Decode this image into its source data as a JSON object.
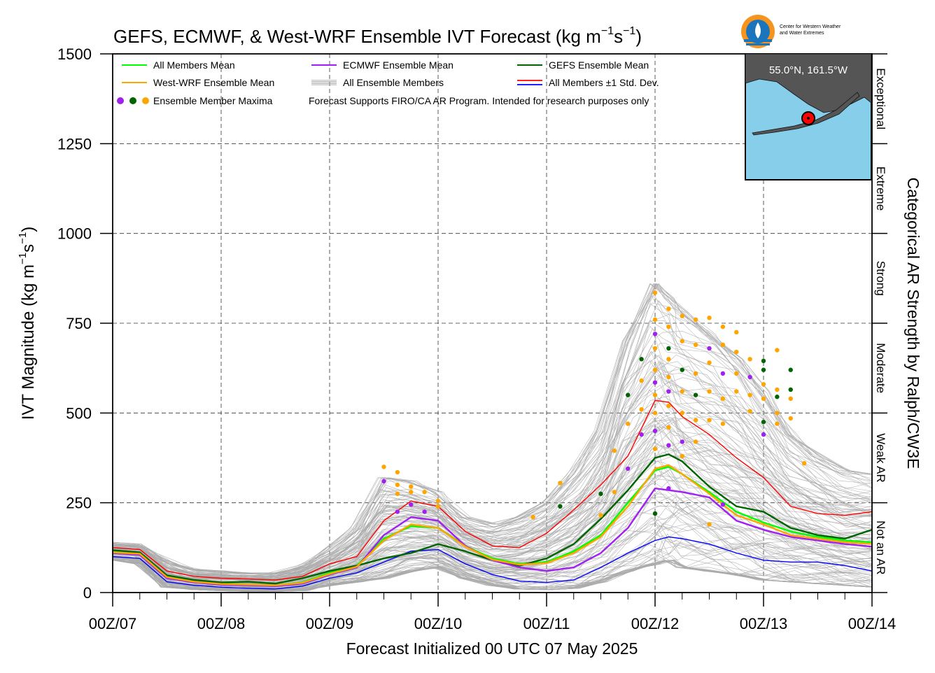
{
  "chart_data": {
    "type": "line",
    "title": "GEFS, ECMWF, & West-WRF Ensemble IVT Forecast (kg m⁻¹s⁻¹)",
    "title_text": "GEFS, ECMWF, & West-WRF Ensemble IVT Forecast (kg m",
    "title_exp1": "−1",
    "title_s": "s",
    "title_exp2": "−1",
    "title_end": ")",
    "ylabel_text": "IVT Magnitude (kg m",
    "ylabel_exp1": "−1",
    "ylabel_s": "s",
    "ylabel_exp2": "−1",
    "ylabel_end": ")",
    "xlabel": "Forecast Initialized 00 UTC 07 May 2025",
    "right_label": "Categorical AR Strength by Ralph/CW3E",
    "logo_text_1": "Center for Western Weather",
    "logo_text_2": "and Water Extremes",
    "inset_location": "55.0°N, 161.5°W",
    "ylim": [
      0,
      1500
    ],
    "yticks": [
      0,
      250,
      500,
      750,
      1000,
      1250,
      1500
    ],
    "xlim": [
      0,
      168
    ],
    "xticks": [
      {
        "hour": 0,
        "label": "00Z/07"
      },
      {
        "hour": 24,
        "label": "00Z/08"
      },
      {
        "hour": 48,
        "label": "00Z/09"
      },
      {
        "hour": 72,
        "label": "00Z/10"
      },
      {
        "hour": 96,
        "label": "00Z/11"
      },
      {
        "hour": 120,
        "label": "00Z/12"
      },
      {
        "hour": 144,
        "label": "00Z/13"
      },
      {
        "hour": 168,
        "label": "00Z/14"
      }
    ],
    "categories": [
      {
        "label": "Not an AR",
        "from": 0,
        "to": 250
      },
      {
        "label": "Weak AR",
        "from": 250,
        "to": 500
      },
      {
        "label": "Moderate",
        "from": 500,
        "to": 750
      },
      {
        "label": "Strong",
        "from": 750,
        "to": 1000
      },
      {
        "label": "Extreme",
        "from": 1000,
        "to": 1250
      },
      {
        "label": "Exceptional",
        "from": 1250,
        "to": 1500
      }
    ],
    "grid": true,
    "legend_position": "top-left",
    "legend": [
      {
        "label": "All Members Mean",
        "color": "#00ff00",
        "kind": "line"
      },
      {
        "label": "ECMWF Ensemble Mean",
        "color": "#a020f0",
        "kind": "line"
      },
      {
        "label": "GEFS Ensemble Mean",
        "color": "#006400",
        "kind": "line"
      },
      {
        "label": "West-WRF Ensemble Mean",
        "color": "#ffa500",
        "kind": "line"
      },
      {
        "label": "All Ensemble Members",
        "color": "#a9a9a9",
        "kind": "members"
      },
      {
        "label": "All Members ±1 Std. Dev.",
        "color": "#ff0000",
        "color2": "#0000ff",
        "kind": "pair"
      },
      {
        "label": "Ensemble Member Maxima",
        "kind": "dots",
        "colors": [
          "#a020f0",
          "#006400",
          "#ffa500"
        ]
      }
    ],
    "note": "Forecast Supports FIRO/CA AR Program. Intended for research purposes only",
    "series": [
      {
        "name": "All Members Mean",
        "color": "#00ff00",
        "x": [
          0,
          6,
          12,
          18,
          24,
          30,
          36,
          42,
          48,
          54,
          60,
          66,
          72,
          78,
          84,
          90,
          96,
          102,
          108,
          114,
          120,
          123,
          126,
          132,
          138,
          144,
          150,
          156,
          162,
          168
        ],
        "y": [
          115,
          110,
          45,
          30,
          25,
          22,
          20,
          28,
          55,
          75,
          150,
          185,
          180,
          130,
          95,
          80,
          85,
          115,
          160,
          250,
          340,
          350,
          330,
          280,
          225,
          195,
          170,
          155,
          145,
          140
        ]
      },
      {
        "name": "ECMWF Ensemble Mean",
        "color": "#a020f0",
        "x": [
          0,
          6,
          12,
          18,
          24,
          30,
          36,
          42,
          48,
          54,
          60,
          66,
          72,
          78,
          84,
          90,
          96,
          102,
          108,
          114,
          120,
          123,
          126,
          132,
          138,
          144,
          150,
          156,
          162,
          168
        ],
        "y": [
          110,
          105,
          40,
          28,
          22,
          20,
          18,
          25,
          50,
          70,
          160,
          210,
          200,
          130,
          90,
          70,
          60,
          70,
          110,
          180,
          290,
          285,
          280,
          265,
          200,
          175,
          155,
          145,
          135,
          128
        ]
      },
      {
        "name": "GEFS Ensemble Mean",
        "color": "#006400",
        "x": [
          0,
          6,
          12,
          18,
          24,
          30,
          36,
          42,
          48,
          54,
          60,
          66,
          72,
          78,
          84,
          90,
          96,
          102,
          108,
          114,
          120,
          123,
          126,
          132,
          138,
          144,
          150,
          156,
          162,
          168
        ],
        "y": [
          118,
          112,
          48,
          35,
          28,
          30,
          25,
          40,
          60,
          75,
          95,
          110,
          135,
          115,
          90,
          75,
          95,
          135,
          205,
          285,
          375,
          385,
          365,
          295,
          240,
          225,
          180,
          160,
          150,
          175
        ]
      },
      {
        "name": "West-WRF Ensemble Mean",
        "color": "#ffa500",
        "x": [
          0,
          6,
          12,
          18,
          24,
          30,
          36,
          42,
          48,
          54,
          60,
          66,
          72,
          78,
          84,
          90,
          96,
          102,
          108,
          114,
          120,
          123,
          126,
          132,
          138,
          144,
          150,
          156,
          162,
          168
        ],
        "y": [
          112,
          108,
          43,
          30,
          24,
          22,
          20,
          27,
          52,
          72,
          145,
          190,
          180,
          128,
          92,
          78,
          82,
          110,
          155,
          240,
          345,
          355,
          330,
          275,
          215,
          190,
          160,
          150,
          140,
          135
        ]
      },
      {
        "name": "All Members +1 Std. Dev.",
        "color": "#ff0000",
        "x": [
          0,
          6,
          12,
          18,
          24,
          30,
          36,
          42,
          48,
          54,
          60,
          66,
          72,
          78,
          84,
          90,
          96,
          102,
          108,
          114,
          120,
          123,
          126,
          132,
          138,
          144,
          150,
          156,
          162,
          168
        ],
        "y": [
          125,
          120,
          60,
          45,
          40,
          38,
          35,
          45,
          80,
          100,
          200,
          255,
          240,
          170,
          130,
          125,
          165,
          230,
          300,
          380,
          535,
          530,
          490,
          440,
          375,
          320,
          240,
          220,
          215,
          225
        ]
      },
      {
        "name": "All Members -1 Std. Dev.",
        "color": "#0000ff",
        "x": [
          0,
          6,
          12,
          18,
          24,
          30,
          36,
          42,
          48,
          54,
          60,
          66,
          72,
          78,
          84,
          90,
          96,
          102,
          108,
          114,
          120,
          123,
          126,
          132,
          138,
          144,
          150,
          156,
          162,
          168
        ],
        "y": [
          100,
          95,
          30,
          20,
          15,
          12,
          10,
          18,
          40,
          55,
          85,
          115,
          120,
          80,
          50,
          32,
          28,
          35,
          70,
          110,
          145,
          155,
          150,
          135,
          110,
          90,
          85,
          85,
          75,
          60
        ]
      }
    ],
    "members_band": {
      "x": [
        0,
        6,
        12,
        18,
        24,
        30,
        36,
        42,
        48,
        54,
        60,
        66,
        72,
        78,
        84,
        90,
        96,
        102,
        108,
        114,
        120,
        123,
        126,
        132,
        138,
        144,
        150,
        156,
        162,
        168
      ],
      "low": [
        90,
        80,
        15,
        8,
        5,
        3,
        3,
        5,
        20,
        30,
        40,
        60,
        70,
        40,
        20,
        10,
        8,
        12,
        30,
        60,
        80,
        90,
        70,
        60,
        50,
        35,
        30,
        25,
        20,
        15
      ],
      "high": [
        140,
        135,
        90,
        65,
        60,
        55,
        55,
        75,
        120,
        180,
        320,
        310,
        280,
        210,
        190,
        210,
        250,
        330,
        450,
        700,
        860,
        820,
        780,
        720,
        650,
        560,
        440,
        380,
        340,
        330
      ]
    },
    "maxima": [
      {
        "x": 60,
        "y": 350,
        "color": "#ffa500"
      },
      {
        "x": 60,
        "y": 310,
        "color": "#a020f0"
      },
      {
        "x": 63,
        "y": 335,
        "color": "#ffa500"
      },
      {
        "x": 63,
        "y": 300,
        "color": "#ffa500"
      },
      {
        "x": 63,
        "y": 275,
        "color": "#ffa500"
      },
      {
        "x": 63,
        "y": 225,
        "color": "#a020f0"
      },
      {
        "x": 66,
        "y": 295,
        "color": "#ffa500"
      },
      {
        "x": 66,
        "y": 280,
        "color": "#ffa500"
      },
      {
        "x": 66,
        "y": 245,
        "color": "#a020f0"
      },
      {
        "x": 69,
        "y": 280,
        "color": "#ffa500"
      },
      {
        "x": 69,
        "y": 225,
        "color": "#a020f0"
      },
      {
        "x": 72,
        "y": 255,
        "color": "#ffa500"
      },
      {
        "x": 72,
        "y": 240,
        "color": "#ffa500"
      },
      {
        "x": 93,
        "y": 210,
        "color": "#ffa500"
      },
      {
        "x": 99,
        "y": 305,
        "color": "#ffa500"
      },
      {
        "x": 99,
        "y": 240,
        "color": "#006400"
      },
      {
        "x": 108,
        "y": 275,
        "color": "#006400"
      },
      {
        "x": 108,
        "y": 215,
        "color": "#ffa500"
      },
      {
        "x": 111,
        "y": 395,
        "color": "#ffa500"
      },
      {
        "x": 111,
        "y": 280,
        "color": "#ffa500"
      },
      {
        "x": 114,
        "y": 550,
        "color": "#006400"
      },
      {
        "x": 114,
        "y": 470,
        "color": "#ffa500"
      },
      {
        "x": 114,
        "y": 345,
        "color": "#a020f0"
      },
      {
        "x": 117,
        "y": 650,
        "color": "#006400"
      },
      {
        "x": 117,
        "y": 590,
        "color": "#ffa500"
      },
      {
        "x": 117,
        "y": 510,
        "color": "#ffa500"
      },
      {
        "x": 117,
        "y": 440,
        "color": "#a020f0"
      },
      {
        "x": 120,
        "y": 835,
        "color": "#ffa500"
      },
      {
        "x": 120,
        "y": 760,
        "color": "#ffa500"
      },
      {
        "x": 120,
        "y": 720,
        "color": "#a020f0"
      },
      {
        "x": 120,
        "y": 680,
        "color": "#ffa500"
      },
      {
        "x": 120,
        "y": 620,
        "color": "#ffa500"
      },
      {
        "x": 120,
        "y": 585,
        "color": "#a020f0"
      },
      {
        "x": 120,
        "y": 550,
        "color": "#ffa500"
      },
      {
        "x": 120,
        "y": 500,
        "color": "#ffa500"
      },
      {
        "x": 120,
        "y": 450,
        "color": "#a020f0"
      },
      {
        "x": 120,
        "y": 400,
        "color": "#ffa500"
      },
      {
        "x": 120,
        "y": 220,
        "color": "#006400"
      },
      {
        "x": 123,
        "y": 790,
        "color": "#ffa500"
      },
      {
        "x": 123,
        "y": 740,
        "color": "#ffa500"
      },
      {
        "x": 123,
        "y": 680,
        "color": "#006400"
      },
      {
        "x": 123,
        "y": 650,
        "color": "#ffa500"
      },
      {
        "x": 123,
        "y": 600,
        "color": "#ffa500"
      },
      {
        "x": 123,
        "y": 560,
        "color": "#a020f0"
      },
      {
        "x": 123,
        "y": 520,
        "color": "#ffa500"
      },
      {
        "x": 123,
        "y": 460,
        "color": "#ffa500"
      },
      {
        "x": 123,
        "y": 410,
        "color": "#a020f0"
      },
      {
        "x": 123,
        "y": 290,
        "color": "#a020f0"
      },
      {
        "x": 126,
        "y": 770,
        "color": "#ffa500"
      },
      {
        "x": 126,
        "y": 700,
        "color": "#ffa500"
      },
      {
        "x": 126,
        "y": 620,
        "color": "#006400"
      },
      {
        "x": 126,
        "y": 560,
        "color": "#ffa500"
      },
      {
        "x": 126,
        "y": 500,
        "color": "#ffa500"
      },
      {
        "x": 126,
        "y": 420,
        "color": "#a020f0"
      },
      {
        "x": 126,
        "y": 380,
        "color": "#ffa500"
      },
      {
        "x": 129,
        "y": 760,
        "color": "#ffa500"
      },
      {
        "x": 129,
        "y": 690,
        "color": "#ffa500"
      },
      {
        "x": 129,
        "y": 610,
        "color": "#ffa500"
      },
      {
        "x": 129,
        "y": 550,
        "color": "#006400"
      },
      {
        "x": 129,
        "y": 480,
        "color": "#ffa500"
      },
      {
        "x": 129,
        "y": 420,
        "color": "#ffa500"
      },
      {
        "x": 132,
        "y": 765,
        "color": "#ffa500"
      },
      {
        "x": 132,
        "y": 680,
        "color": "#a020f0"
      },
      {
        "x": 132,
        "y": 640,
        "color": "#ffa500"
      },
      {
        "x": 132,
        "y": 560,
        "color": "#ffa500"
      },
      {
        "x": 132,
        "y": 480,
        "color": "#ffa500"
      },
      {
        "x": 132,
        "y": 190,
        "color": "#ffa500"
      },
      {
        "x": 135,
        "y": 740,
        "color": "#ffa500"
      },
      {
        "x": 135,
        "y": 690,
        "color": "#ffa500"
      },
      {
        "x": 135,
        "y": 610,
        "color": "#a020f0"
      },
      {
        "x": 135,
        "y": 540,
        "color": "#ffa500"
      },
      {
        "x": 135,
        "y": 470,
        "color": "#ffa500"
      },
      {
        "x": 135,
        "y": 245,
        "color": "#a020f0"
      },
      {
        "x": 138,
        "y": 725,
        "color": "#ffa500"
      },
      {
        "x": 138,
        "y": 670,
        "color": "#ffa500"
      },
      {
        "x": 138,
        "y": 610,
        "color": "#ffa500"
      },
      {
        "x": 138,
        "y": 560,
        "color": "#ffa500"
      },
      {
        "x": 141,
        "y": 650,
        "color": "#ffa500"
      },
      {
        "x": 141,
        "y": 600,
        "color": "#a020f0"
      },
      {
        "x": 141,
        "y": 550,
        "color": "#ffa500"
      },
      {
        "x": 141,
        "y": 505,
        "color": "#ffa500"
      },
      {
        "x": 144,
        "y": 645,
        "color": "#006400"
      },
      {
        "x": 144,
        "y": 620,
        "color": "#006400"
      },
      {
        "x": 144,
        "y": 580,
        "color": "#ffa500"
      },
      {
        "x": 144,
        "y": 540,
        "color": "#ffa500"
      },
      {
        "x": 144,
        "y": 475,
        "color": "#006400"
      },
      {
        "x": 144,
        "y": 440,
        "color": "#a020f0"
      },
      {
        "x": 147,
        "y": 675,
        "color": "#ffa500"
      },
      {
        "x": 147,
        "y": 565,
        "color": "#ffa500"
      },
      {
        "x": 147,
        "y": 545,
        "color": "#006400"
      },
      {
        "x": 147,
        "y": 500,
        "color": "#ffa500"
      },
      {
        "x": 147,
        "y": 470,
        "color": "#ffa500"
      },
      {
        "x": 150,
        "y": 620,
        "color": "#006400"
      },
      {
        "x": 150,
        "y": 565,
        "color": "#006400"
      },
      {
        "x": 150,
        "y": 540,
        "color": "#ffa500"
      },
      {
        "x": 150,
        "y": 485,
        "color": "#ffa500"
      },
      {
        "x": 153,
        "y": 360,
        "color": "#ffa500"
      }
    ]
  }
}
